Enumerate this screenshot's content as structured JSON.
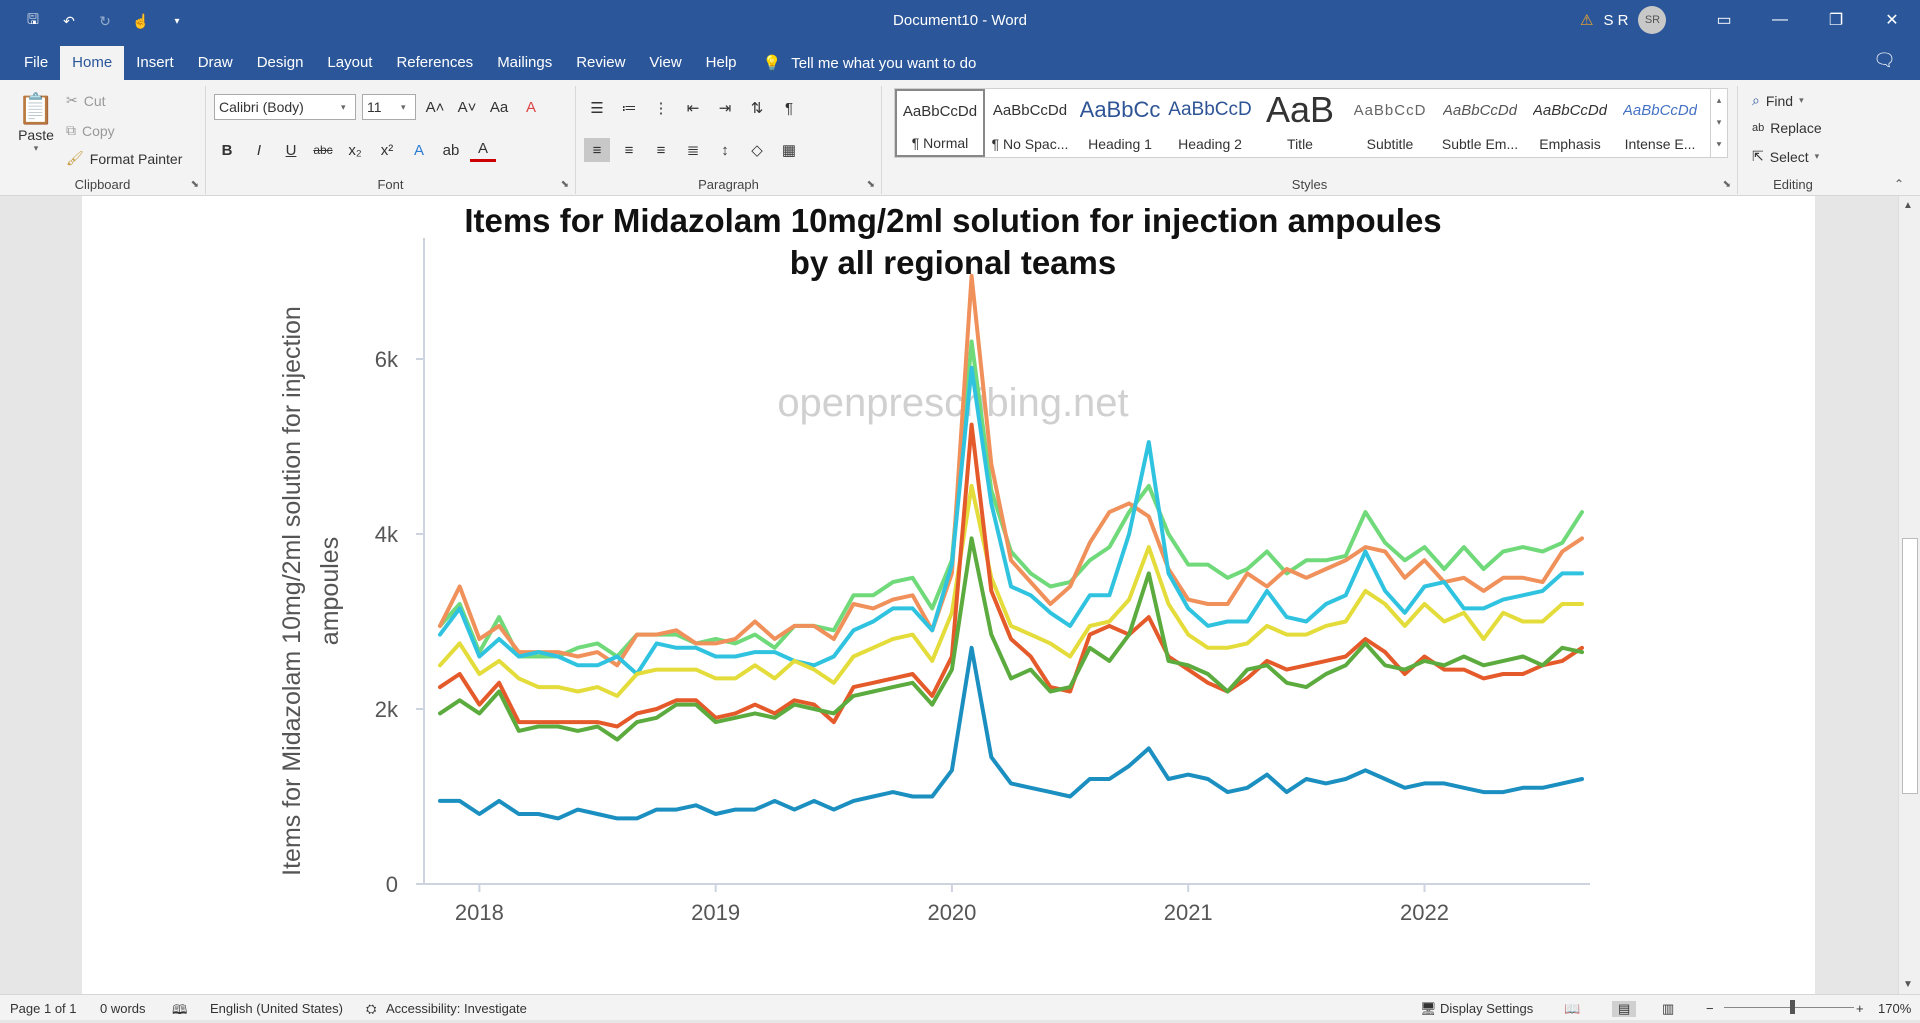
{
  "titlebar": {
    "doc_title": "Document10  -  Word",
    "user_initials": "S R",
    "avatar_text": "SR"
  },
  "tabs": {
    "items": [
      "File",
      "Home",
      "Insert",
      "Draw",
      "Design",
      "Layout",
      "References",
      "Mailings",
      "Review",
      "View",
      "Help"
    ],
    "active": "Home",
    "tell_me": "Tell me what you want to do"
  },
  "clipboard": {
    "paste": "Paste",
    "cut": "Cut",
    "copy": "Copy",
    "format_painter": "Format Painter",
    "label": "Clipboard"
  },
  "font": {
    "family": "Calibri (Body)",
    "size": "11",
    "label": "Font"
  },
  "paragraph": {
    "label": "Paragraph"
  },
  "styles": {
    "label": "Styles",
    "items": [
      {
        "sample": "AaBbCcDd",
        "name": "¶ Normal"
      },
      {
        "sample": "AaBbCcDd",
        "name": "¶ No Spac..."
      },
      {
        "sample": "AaBbCc",
        "name": "Heading 1"
      },
      {
        "sample": "AaBbCcD",
        "name": "Heading 2"
      },
      {
        "sample": "AaB",
        "name": "Title"
      },
      {
        "sample": "AaBbCcD",
        "name": "Subtitle"
      },
      {
        "sample": "AaBbCcDd",
        "name": "Subtle Em..."
      },
      {
        "sample": "AaBbCcDd",
        "name": "Emphasis"
      },
      {
        "sample": "AaBbCcDd",
        "name": "Intense E..."
      }
    ]
  },
  "editing": {
    "find": "Find",
    "replace": "Replace",
    "select": "Select",
    "label": "Editing"
  },
  "statusbar": {
    "page": "Page 1 of 1",
    "words": "0 words",
    "language": "English (United States)",
    "accessibility": "Accessibility: Investigate",
    "display_settings": "Display Settings",
    "zoom": "170%"
  },
  "chart_data": {
    "type": "line",
    "title": "Items for Midazolam 10mg/2ml solution for injection ampoules by all regional teams",
    "ylabel": "Items for Midazolam 10mg/2ml solution for injection ampoules",
    "watermark": "openprescribing.net",
    "xlabel": "",
    "x_ticks": [
      "2018",
      "2019",
      "2020",
      "2021",
      "2022"
    ],
    "y_ticks": [
      "0",
      "2k",
      "4k",
      "6k"
    ],
    "ylim": [
      0,
      7200
    ],
    "x_start": "2017-11",
    "series": [
      {
        "color": "#70d97a",
        "values": [
          2950,
          3200,
          2650,
          3050,
          2600,
          2600,
          2600,
          2700,
          2750,
          2600,
          2850,
          2850,
          2850,
          2750,
          2800,
          2750,
          2850,
          2700,
          2950,
          2950,
          2900,
          3300,
          3300,
          3450,
          3500,
          3150,
          3700,
          6200,
          4500,
          3800,
          3550,
          3400,
          3450,
          3700,
          3850,
          4250,
          4550,
          4000,
          3650,
          3650,
          3500,
          3600,
          3800,
          3550,
          3700,
          3700,
          3750,
          4250,
          3900,
          3700,
          3850,
          3600,
          3850,
          3600,
          3800,
          3850,
          3800,
          3900,
          4250
        ]
      },
      {
        "color": "#f0905a",
        "values": [
          2950,
          3400,
          2800,
          2950,
          2650,
          2650,
          2650,
          2600,
          2650,
          2500,
          2850,
          2850,
          2900,
          2750,
          2750,
          2800,
          3000,
          2800,
          2950,
          2950,
          2800,
          3200,
          3150,
          3250,
          3300,
          2900,
          3550,
          6950,
          4800,
          3700,
          3450,
          3200,
          3400,
          3900,
          4250,
          4350,
          4200,
          3600,
          3250,
          3200,
          3200,
          3550,
          3400,
          3600,
          3500,
          3600,
          3700,
          3850,
          3800,
          3500,
          3700,
          3450,
          3500,
          3350,
          3500,
          3500,
          3450,
          3800,
          3950
        ]
      },
      {
        "color": "#30c3e0",
        "values": [
          2850,
          3150,
          2600,
          2800,
          2600,
          2650,
          2600,
          2500,
          2500,
          2600,
          2400,
          2750,
          2700,
          2700,
          2600,
          2600,
          2650,
          2650,
          2550,
          2500,
          2600,
          2900,
          3000,
          3150,
          3150,
          2900,
          3650,
          5900,
          4350,
          3400,
          3300,
          3100,
          2950,
          3300,
          3300,
          4000,
          5050,
          3550,
          3150,
          2950,
          3000,
          3000,
          3350,
          3050,
          3000,
          3200,
          3300,
          3800,
          3350,
          3100,
          3400,
          3450,
          3150,
          3150,
          3250,
          3300,
          3350,
          3550,
          3550
        ]
      },
      {
        "color": "#e3dc3a",
        "values": [
          2500,
          2750,
          2400,
          2550,
          2350,
          2250,
          2250,
          2200,
          2250,
          2150,
          2400,
          2450,
          2450,
          2450,
          2350,
          2350,
          2500,
          2350,
          2550,
          2450,
          2300,
          2600,
          2700,
          2800,
          2850,
          2550,
          3100,
          4550,
          3500,
          2950,
          2850,
          2750,
          2600,
          2950,
          3000,
          3250,
          3850,
          3200,
          2850,
          2700,
          2700,
          2750,
          2950,
          2850,
          2850,
          2950,
          3000,
          3350,
          3200,
          2950,
          3200,
          3000,
          3100,
          2800,
          3100,
          3000,
          3000,
          3200,
          3200
        ]
      },
      {
        "color": "#e55a2a",
        "values": [
          2250,
          2400,
          2050,
          2300,
          1850,
          1850,
          1850,
          1850,
          1850,
          1800,
          1950,
          2000,
          2100,
          2100,
          1900,
          1950,
          2050,
          1950,
          2100,
          2050,
          1850,
          2250,
          2300,
          2350,
          2400,
          2150,
          2600,
          5250,
          3350,
          2800,
          2600,
          2250,
          2200,
          2850,
          2950,
          2850,
          3050,
          2600,
          2450,
          2300,
          2200,
          2350,
          2550,
          2450,
          2500,
          2550,
          2600,
          2800,
          2650,
          2400,
          2600,
          2450,
          2450,
          2350,
          2400,
          2400,
          2500,
          2550,
          2700
        ]
      },
      {
        "color": "#5cab3e",
        "values": [
          1950,
          2100,
          1950,
          2200,
          1750,
          1800,
          1800,
          1750,
          1800,
          1650,
          1850,
          1900,
          2050,
          2050,
          1850,
          1900,
          1950,
          1900,
          2050,
          2000,
          1950,
          2150,
          2200,
          2250,
          2300,
          2050,
          2450,
          3950,
          2850,
          2350,
          2450,
          2200,
          2250,
          2700,
          2550,
          2850,
          3550,
          2550,
          2500,
          2400,
          2200,
          2450,
          2500,
          2300,
          2250,
          2400,
          2500,
          2750,
          2500,
          2450,
          2550,
          2500,
          2600,
          2500,
          2550,
          2600,
          2500,
          2700,
          2650
        ]
      },
      {
        "color": "#1a8fc0",
        "values": [
          950,
          950,
          800,
          950,
          800,
          800,
          750,
          850,
          800,
          750,
          750,
          850,
          850,
          900,
          800,
          850,
          850,
          950,
          850,
          950,
          850,
          950,
          1000,
          1050,
          1000,
          1000,
          1300,
          2700,
          1450,
          1150,
          1100,
          1050,
          1000,
          1200,
          1200,
          1350,
          1550,
          1200,
          1250,
          1200,
          1050,
          1100,
          1250,
          1050,
          1200,
          1150,
          1200,
          1300,
          1200,
          1100,
          1150,
          1150,
          1100,
          1050,
          1050,
          1100,
          1100,
          1150,
          1200
        ]
      }
    ]
  }
}
